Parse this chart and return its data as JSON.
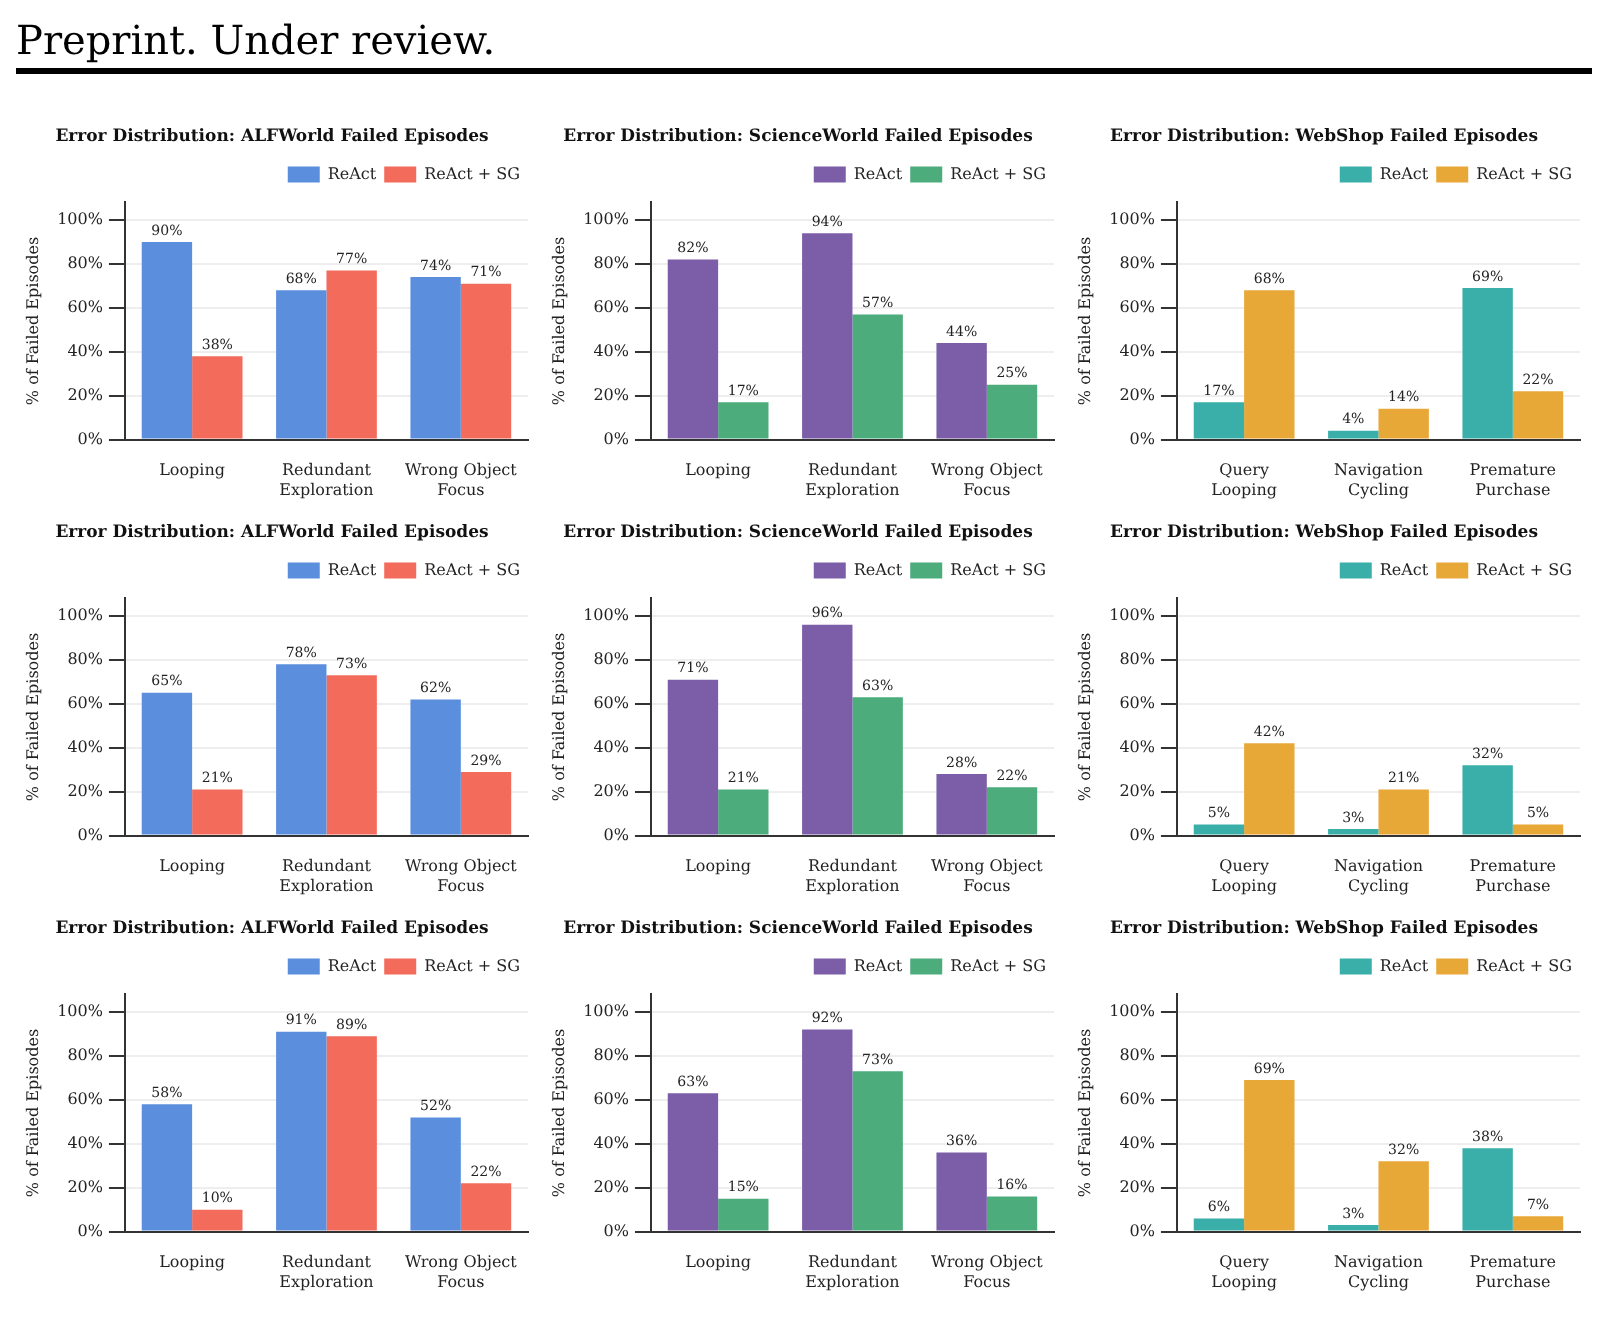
{
  "chart_data": [
    {
      "type": "bar",
      "title": "Error Distribution: ALFWorld Failed Episodes",
      "ylabel": "% of Failed Episodes",
      "annotations": [
        "Preprint. Under review."
      ],
      "categories": [
        "Looping",
        "Redundant\nExploration",
        "Wrong Object\nFocus"
      ],
      "series": [
        {
          "name": "ReAct",
          "color": "#5b8fde",
          "values": [
            90,
            68,
            74
          ],
          "value_labels": [
            "90%",
            "68%",
            "74%"
          ]
        },
        {
          "name": "ReAct + SG",
          "color": "#f26b5b",
          "values": [
            38,
            77,
            71
          ],
          "value_labels": [
            "38%",
            "77%",
            "71%"
          ]
        }
      ],
      "ylim": [
        0,
        108
      ],
      "yticks": [
        {
          "value": 0,
          "label": "0%"
        },
        {
          "value": 20,
          "label": "20%"
        },
        {
          "value": 40,
          "label": "40%"
        },
        {
          "value": 60,
          "label": "60%"
        },
        {
          "value": 80,
          "label": "80%"
        },
        {
          "value": 100,
          "label": "100%"
        }
      ],
      "grid": "y",
      "legend": "top right"
    },
    {
      "type": "bar",
      "title": "Error Distribution: ScienceWorld Failed Episodes",
      "ylabel": "% of Failed Episodes",
      "categories": [
        "Looping",
        "Redundant\nExploration",
        "Wrong Object\nFocus"
      ],
      "series": [
        {
          "name": "ReAct",
          "color": "#7b5ea7",
          "values": [
            82,
            94,
            44
          ],
          "value_labels": [
            "82%",
            "94%",
            "44%"
          ]
        },
        {
          "name": "ReAct + SG",
          "color": "#4cac7c",
          "values": [
            17,
            57,
            25
          ],
          "value_labels": [
            "17%",
            "57%",
            "25%"
          ]
        }
      ],
      "ylim": [
        0,
        108
      ],
      "yticks": [
        {
          "value": 0,
          "label": "0%"
        },
        {
          "value": 20,
          "label": "20%"
        },
        {
          "value": 40,
          "label": "40%"
        },
        {
          "value": 60,
          "label": "60%"
        },
        {
          "value": 80,
          "label": "80%"
        },
        {
          "value": 100,
          "label": "100%"
        }
      ],
      "grid": "y",
      "legend": "top right"
    },
    {
      "type": "bar",
      "title": "Error Distribution: WebShop Failed Episodes",
      "ylabel": "% of Failed Episodes",
      "categories": [
        "Query\nLooping",
        "Navigation\nCycling",
        "Premature\nPurchase"
      ],
      "series": [
        {
          "name": "ReAct",
          "color": "#3aafa9",
          "values": [
            17,
            4,
            69
          ],
          "value_labels": [
            "17%",
            "4%",
            "69%"
          ]
        },
        {
          "name": "ReAct + SG",
          "color": "#e8a838",
          "values": [
            68,
            14,
            22
          ],
          "value_labels": [
            "68%",
            "14%",
            "22%"
          ]
        }
      ],
      "ylim": [
        0,
        108
      ],
      "yticks": [
        {
          "value": 0,
          "label": "0%"
        },
        {
          "value": 20,
          "label": "20%"
        },
        {
          "value": 40,
          "label": "40%"
        },
        {
          "value": 60,
          "label": "60%"
        },
        {
          "value": 80,
          "label": "80%"
        },
        {
          "value": 100,
          "label": "100%"
        }
      ],
      "grid": "y",
      "legend": "top right"
    },
    {
      "type": "bar",
      "title": "Error Distribution: ALFWorld Failed Episodes",
      "ylabel": "% of Failed Episodes",
      "categories": [
        "Looping",
        "Redundant\nExploration",
        "Wrong Object\nFocus"
      ],
      "series": [
        {
          "name": "ReAct",
          "color": "#5b8fde",
          "values": [
            65,
            78,
            62
          ],
          "value_labels": [
            "65%",
            "78%",
            "62%"
          ]
        },
        {
          "name": "ReAct + SG",
          "color": "#f26b5b",
          "values": [
            21,
            73,
            29
          ],
          "value_labels": [
            "21%",
            "73%",
            "29%"
          ]
        }
      ],
      "ylim": [
        0,
        108
      ],
      "yticks": [
        {
          "value": 0,
          "label": "0%"
        },
        {
          "value": 20,
          "label": "20%"
        },
        {
          "value": 40,
          "label": "40%"
        },
        {
          "value": 60,
          "label": "60%"
        },
        {
          "value": 80,
          "label": "80%"
        },
        {
          "value": 100,
          "label": "100%"
        }
      ],
      "grid": "y",
      "legend": "top right"
    },
    {
      "type": "bar",
      "title": "Error Distribution: ScienceWorld Failed Episodes",
      "ylabel": "% of Failed Episodes",
      "categories": [
        "Looping",
        "Redundant\nExploration",
        "Wrong Object\nFocus"
      ],
      "series": [
        {
          "name": "ReAct",
          "color": "#7b5ea7",
          "values": [
            71,
            96,
            28
          ],
          "value_labels": [
            "71%",
            "96%",
            "28%"
          ]
        },
        {
          "name": "ReAct + SG",
          "color": "#4cac7c",
          "values": [
            21,
            63,
            22
          ],
          "value_labels": [
            "21%",
            "63%",
            "22%"
          ]
        }
      ],
      "ylim": [
        0,
        108
      ],
      "yticks": [
        {
          "value": 0,
          "label": "0%"
        },
        {
          "value": 20,
          "label": "20%"
        },
        {
          "value": 40,
          "label": "40%"
        },
        {
          "value": 60,
          "label": "60%"
        },
        {
          "value": 80,
          "label": "80%"
        },
        {
          "value": 100,
          "label": "100%"
        }
      ],
      "grid": "y",
      "legend": "top right"
    },
    {
      "type": "bar",
      "title": "Error Distribution: WebShop Failed Episodes",
      "ylabel": "% of Failed Episodes",
      "categories": [
        "Query\nLooping",
        "Navigation\nCycling",
        "Premature\nPurchase"
      ],
      "series": [
        {
          "name": "ReAct",
          "color": "#3aafa9",
          "values": [
            5,
            3,
            32
          ],
          "value_labels": [
            "5%",
            "3%",
            "32%"
          ]
        },
        {
          "name": "ReAct + SG",
          "color": "#e8a838",
          "values": [
            42,
            21,
            5
          ],
          "value_labels": [
            "42%",
            "21%",
            "5%"
          ]
        }
      ],
      "ylim": [
        0,
        108
      ],
      "yticks": [
        {
          "value": 0,
          "label": "0%"
        },
        {
          "value": 20,
          "label": "20%"
        },
        {
          "value": 40,
          "label": "40%"
        },
        {
          "value": 60,
          "label": "60%"
        },
        {
          "value": 80,
          "label": "80%"
        },
        {
          "value": 100,
          "label": "100%"
        }
      ],
      "grid": "y",
      "legend": "top right"
    },
    {
      "type": "bar",
      "title": "Error Distribution: ALFWorld Failed Episodes",
      "ylabel": "% of Failed Episodes",
      "categories": [
        "Looping",
        "Redundant\nExploration",
        "Wrong Object\nFocus"
      ],
      "series": [
        {
          "name": "ReAct",
          "color": "#5b8fde",
          "values": [
            58,
            91,
            52
          ],
          "value_labels": [
            "58%",
            "91%",
            "52%"
          ]
        },
        {
          "name": "ReAct + SG",
          "color": "#f26b5b",
          "values": [
            10,
            89,
            22
          ],
          "value_labels": [
            "10%",
            "89%",
            "22%"
          ]
        }
      ],
      "ylim": [
        0,
        108
      ],
      "yticks": [
        {
          "value": 0,
          "label": "0%"
        },
        {
          "value": 20,
          "label": "20%"
        },
        {
          "value": 40,
          "label": "40%"
        },
        {
          "value": 60,
          "label": "60%"
        },
        {
          "value": 80,
          "label": "80%"
        },
        {
          "value": 100,
          "label": "100%"
        }
      ],
      "grid": "y",
      "legend": "top right"
    },
    {
      "type": "bar",
      "title": "Error Distribution: ScienceWorld Failed Episodes",
      "ylabel": "% of Failed Episodes",
      "categories": [
        "Looping",
        "Redundant\nExploration",
        "Wrong Object\nFocus"
      ],
      "series": [
        {
          "name": "ReAct",
          "color": "#7b5ea7",
          "values": [
            63,
            92,
            36
          ],
          "value_labels": [
            "63%",
            "92%",
            "36%"
          ]
        },
        {
          "name": "ReAct + SG",
          "color": "#4cac7c",
          "values": [
            15,
            73,
            16
          ],
          "value_labels": [
            "15%",
            "73%",
            "16%"
          ]
        }
      ],
      "ylim": [
        0,
        108
      ],
      "yticks": [
        {
          "value": 0,
          "label": "0%"
        },
        {
          "value": 20,
          "label": "20%"
        },
        {
          "value": 40,
          "label": "40%"
        },
        {
          "value": 60,
          "label": "60%"
        },
        {
          "value": 80,
          "label": "80%"
        },
        {
          "value": 100,
          "label": "100%"
        }
      ],
      "grid": "y",
      "legend": "top right"
    },
    {
      "type": "bar",
      "title": "Error Distribution: WebShop Failed Episodes",
      "ylabel": "% of Failed Episodes",
      "categories": [
        "Query\nLooping",
        "Navigation\nCycling",
        "Premature\nPurchase"
      ],
      "series": [
        {
          "name": "ReAct",
          "color": "#3aafa9",
          "values": [
            6,
            3,
            38
          ],
          "value_labels": [
            "6%",
            "3%",
            "38%"
          ]
        },
        {
          "name": "ReAct + SG",
          "color": "#e8a838",
          "values": [
            69,
            32,
            7
          ],
          "value_labels": [
            "69%",
            "32%",
            "7%"
          ]
        }
      ],
      "ylim": [
        0,
        108
      ],
      "yticks": [
        {
          "value": 0,
          "label": "0%"
        },
        {
          "value": 20,
          "label": "20%"
        },
        {
          "value": 40,
          "label": "40%"
        },
        {
          "value": 60,
          "label": "60%"
        },
        {
          "value": 80,
          "label": "80%"
        },
        {
          "value": 100,
          "label": "100%"
        }
      ],
      "grid": "y",
      "legend": "top right"
    }
  ]
}
